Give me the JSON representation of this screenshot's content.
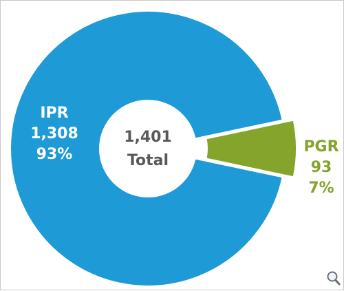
{
  "chart_data": {
    "type": "pie",
    "style": "donut",
    "slices": [
      {
        "name": "IPR",
        "value": 1308,
        "percent_label": "93%",
        "value_label": "1,308",
        "color": "#1e9ad6"
      },
      {
        "name": "PGR",
        "value": 93,
        "percent_label": "7%",
        "value_label": "93",
        "color": "#84a42b"
      }
    ],
    "center": {
      "value_label": "1,401",
      "caption": "Total"
    },
    "exploded_slice": "PGR"
  },
  "toolbar": {
    "zoom_icon": "magnifier-icon"
  }
}
